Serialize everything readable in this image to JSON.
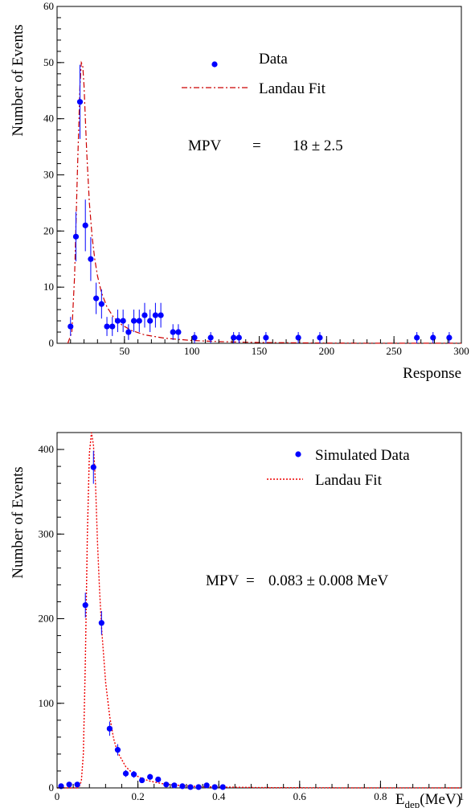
{
  "chart_data": [
    {
      "type": "scatter",
      "title": "",
      "xlabel": "Response",
      "ylabel": "Number of Events",
      "xlim": [
        0,
        300
      ],
      "ylim": [
        0,
        60
      ],
      "xticks": [
        "50",
        "100",
        "150",
        "200",
        "250",
        "300"
      ],
      "yticks": [
        "0",
        "10",
        "20",
        "30",
        "40",
        "50",
        "60"
      ],
      "grid": false,
      "legend_position": "top-right",
      "legend": [
        "Data",
        "Landau Fit"
      ],
      "annotation": {
        "label": "MPV",
        "eq": "=",
        "value": "18 ± 2.5"
      },
      "colors": {
        "data": "#0000ff",
        "fit": "#cc0000"
      },
      "series": [
        {
          "name": "Data",
          "style": "points-with-error-bars",
          "x": [
            10,
            14,
            17,
            21,
            25,
            29,
            33,
            37,
            41,
            45,
            49,
            53,
            57,
            61,
            65,
            69,
            73,
            77,
            86,
            90,
            102,
            114,
            131,
            135,
            155,
            179,
            195,
            267,
            279,
            291
          ],
          "y": [
            3,
            19,
            43,
            21,
            15,
            8,
            7,
            3,
            3,
            4,
            4,
            2,
            4,
            4,
            5,
            4,
            5,
            5,
            2,
            2,
            1,
            1,
            1,
            1,
            1,
            1,
            1,
            1,
            1,
            1
          ],
          "err": [
            1.7,
            4.4,
            6.6,
            4.6,
            3.9,
            2.8,
            2.6,
            1.7,
            1.7,
            2,
            2,
            1.4,
            2,
            2,
            2.2,
            2,
            2.2,
            2.2,
            1.4,
            1.4,
            1,
            1,
            1,
            1,
            1,
            1,
            1,
            1,
            1,
            1
          ]
        },
        {
          "name": "Landau Fit",
          "style": "dash-dot-line",
          "x": [
            8,
            11,
            13,
            15,
            17,
            18,
            19,
            20,
            21,
            22,
            24,
            26,
            28,
            30,
            33,
            37,
            42,
            48,
            55,
            65,
            80,
            100,
            120,
            150,
            200,
            250,
            300
          ],
          "y": [
            0,
            2,
            12,
            30,
            46,
            50,
            49.5,
            46,
            40,
            34,
            25,
            19,
            15,
            12,
            9,
            6.5,
            4.6,
            3.3,
            2.3,
            1.5,
            0.9,
            0.5,
            0.3,
            0.15,
            0.05,
            0.02,
            0.01
          ]
        }
      ]
    },
    {
      "type": "scatter",
      "title": "",
      "xlabel": "E_dep(MeV)",
      "xlabel_main": "E",
      "xlabel_sub": "dep",
      "xlabel_unit": "(MeV)",
      "ylabel": "Number of Events",
      "xlim": [
        0,
        1
      ],
      "ylim": [
        0,
        420
      ],
      "xticks": [
        "0",
        "0.2",
        "0.4",
        "0.6",
        "0.8",
        "1"
      ],
      "yticks": [
        "0",
        "100",
        "200",
        "300",
        "400"
      ],
      "grid": false,
      "legend_position": "top-right",
      "legend": [
        "Simulated Data",
        "Landau Fit"
      ],
      "annotation": {
        "label": "MPV",
        "eq": "=",
        "value": "0.083 ± 0.008 MeV"
      },
      "colors": {
        "data": "#0000ff",
        "fit": "#ee0000"
      },
      "series": [
        {
          "name": "Simulated Data",
          "style": "points-with-error-bars",
          "x": [
            0.01,
            0.03,
            0.05,
            0.07,
            0.09,
            0.11,
            0.13,
            0.15,
            0.17,
            0.19,
            0.21,
            0.23,
            0.25,
            0.27,
            0.29,
            0.31,
            0.33,
            0.35,
            0.37,
            0.39,
            0.41
          ],
          "y": [
            2,
            4,
            4,
            216,
            379,
            195,
            70,
            45,
            17,
            16,
            9,
            13,
            10,
            4,
            3,
            2,
            1,
            1,
            3,
            1,
            1
          ],
          "err": [
            1.4,
            2,
            2,
            14.7,
            19.5,
            14,
            8.4,
            6.7,
            4.1,
            4,
            3,
            3.6,
            3.2,
            2,
            1.7,
            1.4,
            1,
            1,
            1.7,
            1,
            1
          ]
        },
        {
          "name": "Landau Fit",
          "style": "dotted-line",
          "x": [
            0,
            0.05,
            0.055,
            0.06,
            0.065,
            0.07,
            0.075,
            0.08,
            0.085,
            0.09,
            0.095,
            0.1,
            0.105,
            0.11,
            0.12,
            0.13,
            0.14,
            0.15,
            0.17,
            0.19,
            0.21,
            0.23,
            0.26,
            0.3,
            0.35,
            0.4,
            0.5,
            0.7,
            1.0
          ],
          "y": [
            0,
            0,
            2,
            8,
            40,
            150,
            300,
            395,
            420,
            405,
            360,
            290,
            235,
            190,
            125,
            85,
            58,
            42,
            25,
            16,
            11,
            8,
            5,
            3,
            1.5,
            1,
            0.4,
            0.1,
            0
          ]
        }
      ]
    }
  ]
}
